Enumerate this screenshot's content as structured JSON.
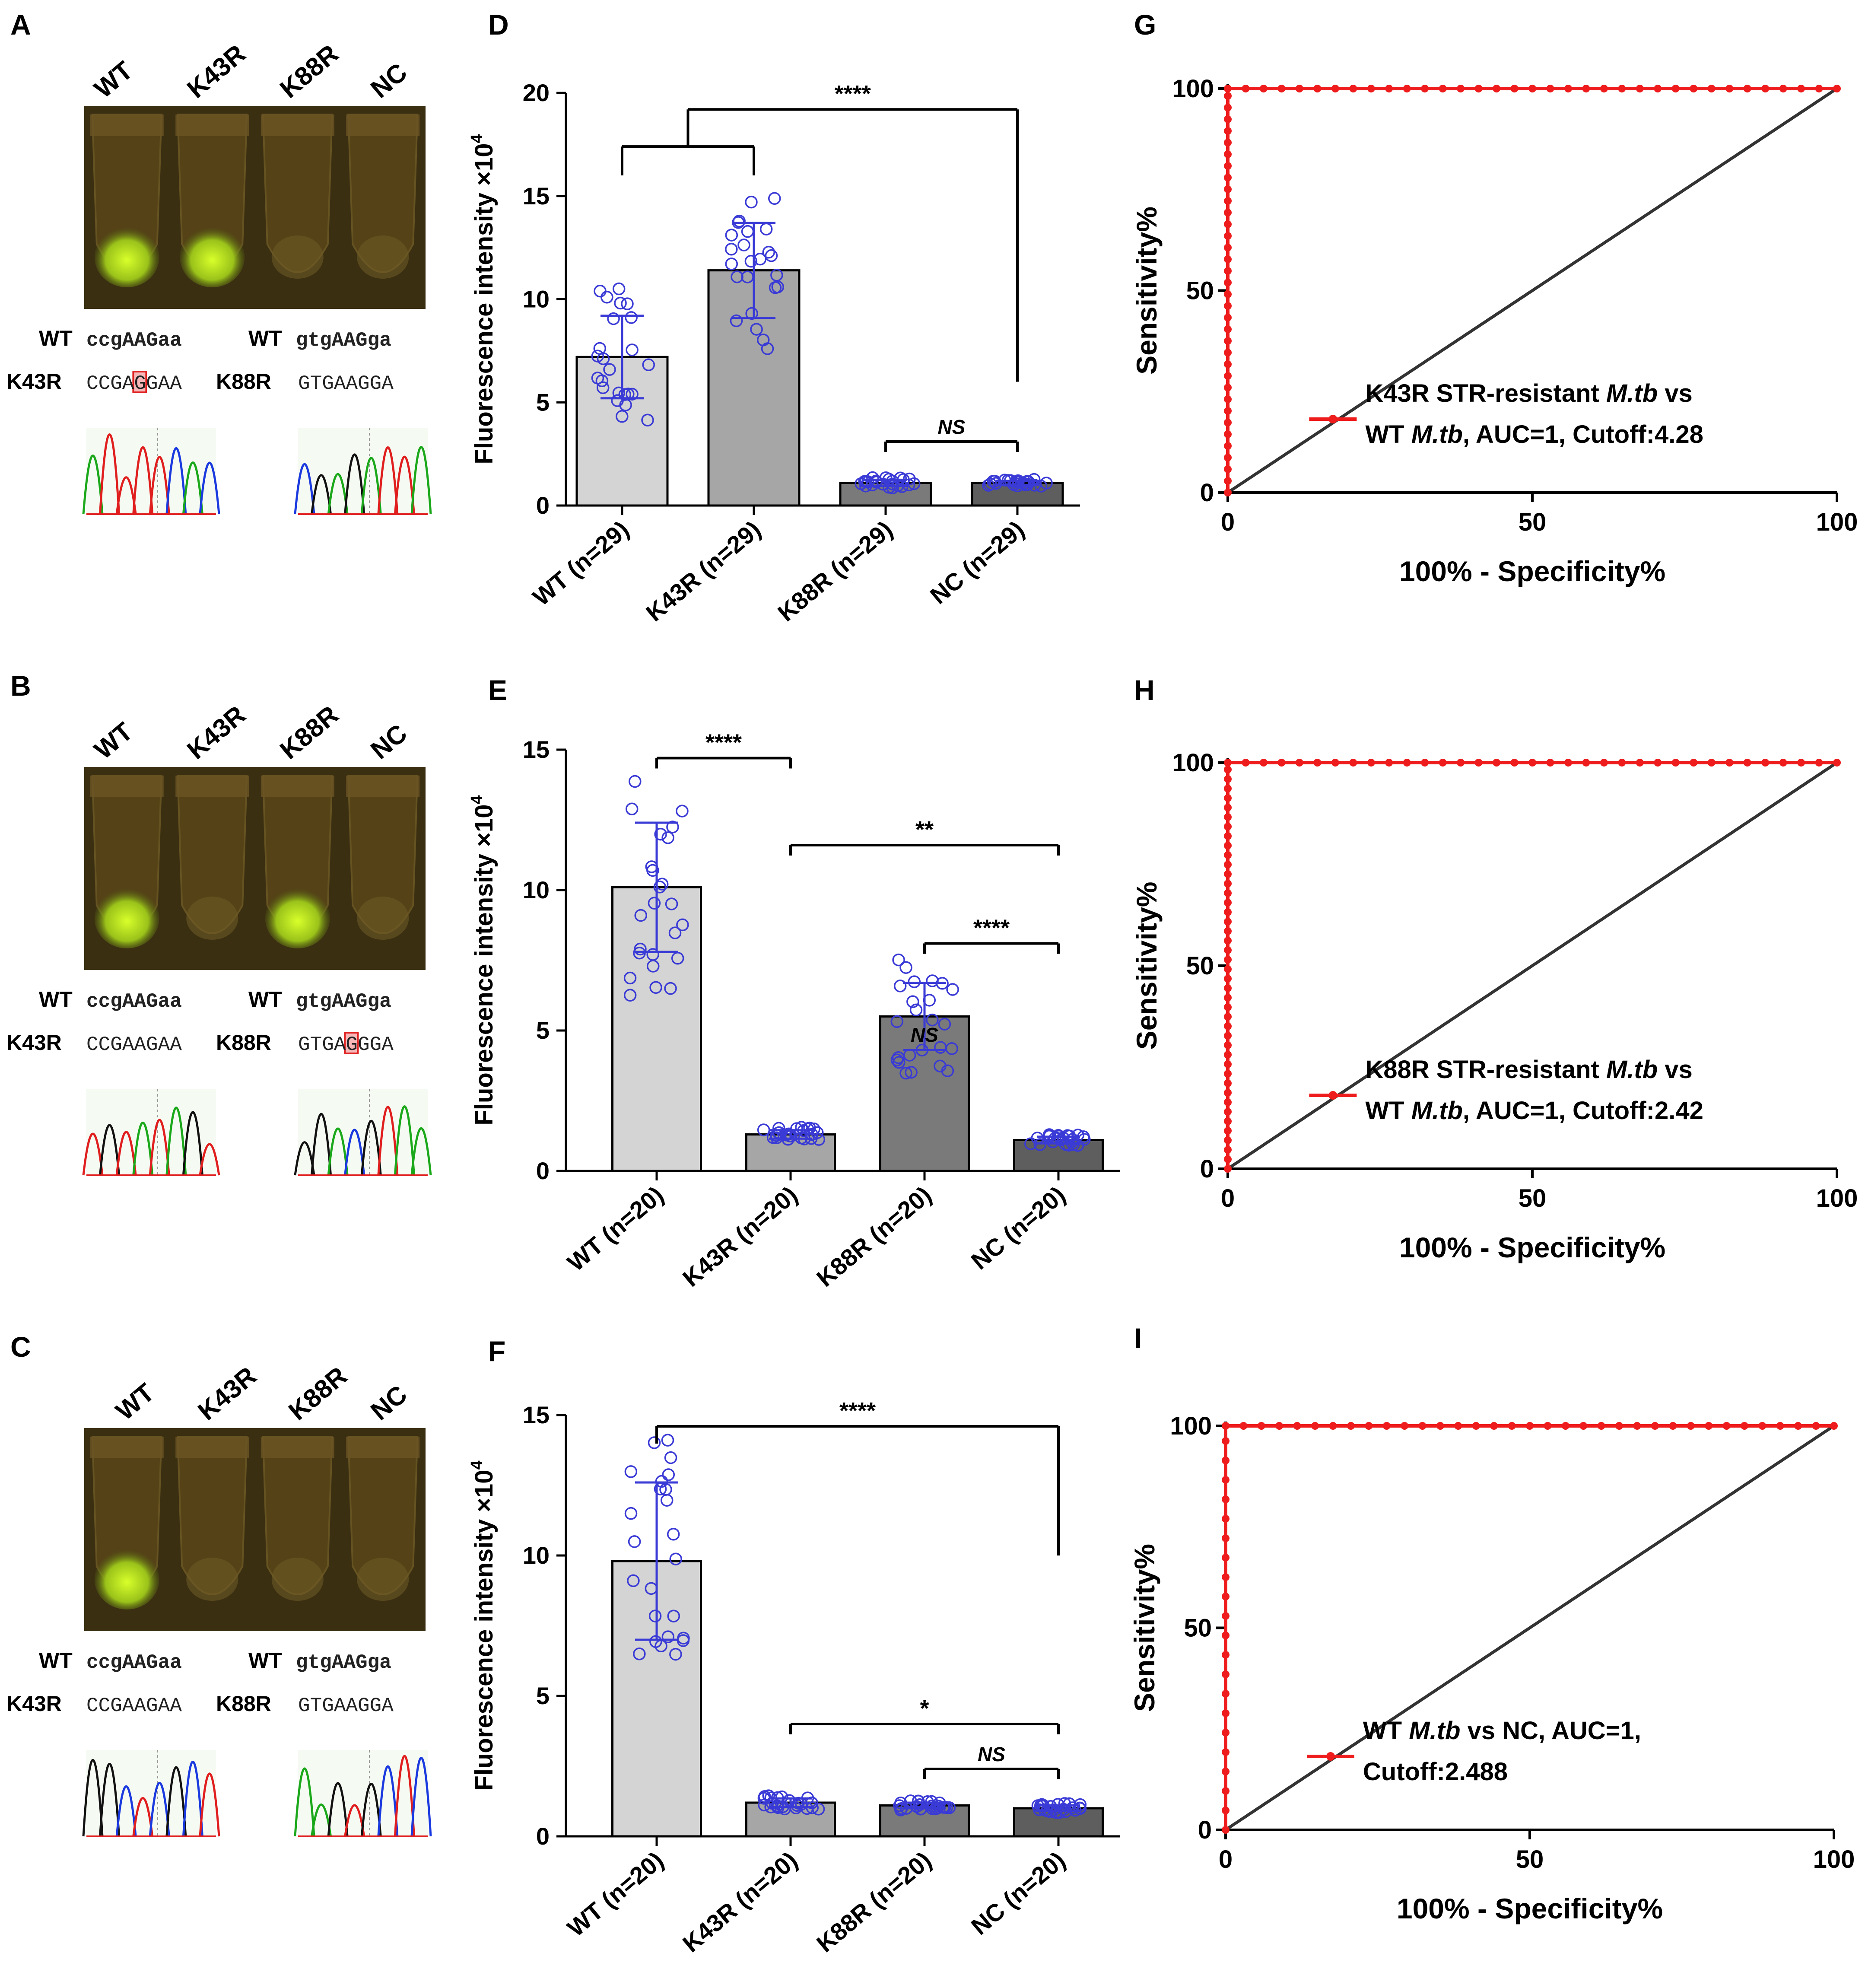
{
  "colors": {
    "bar_wt": "#d4d4d4",
    "bar_k43r": "#a6a6a6",
    "bar_k88r": "#7a7a7a",
    "bar_nc": "#5e5e5e",
    "dots": "#3a3ad6",
    "roc": "#ee1c1c",
    "diag": "#333333"
  },
  "gel_panels": [
    {
      "panel": "A",
      "lanes": [
        "WT",
        "K43R",
        "K88R",
        "NC"
      ],
      "glow_lanes": [
        0,
        1
      ],
      "seq_left": {
        "wt_label": "WT",
        "wt_seq": "ccgAAGaa",
        "mut_label": "K43R",
        "mut_seq": "CCGAGGAA",
        "highlight_index": 4
      },
      "seq_right": {
        "wt_label": "WT",
        "wt_seq": "gtgAAGga",
        "mut_label": "K88R",
        "mut_seq": "GTGAAGGA",
        "highlight_index": -1
      }
    },
    {
      "panel": "B",
      "lanes": [
        "WT",
        "K43R",
        "K88R",
        "NC"
      ],
      "glow_lanes": [
        0,
        2
      ],
      "seq_left": {
        "wt_label": "WT",
        "wt_seq": "ccgAAGaa",
        "mut_label": "K43R",
        "mut_seq": "CCGAAGAA",
        "highlight_index": -1
      },
      "seq_right": {
        "wt_label": "WT",
        "wt_seq": "gtgAAGga",
        "mut_label": "K88R",
        "mut_seq": "GTGAGGGA",
        "highlight_index": 4
      }
    },
    {
      "panel": "C",
      "lanes": [
        "WT",
        "K43R",
        "K88R",
        "NC"
      ],
      "glow_lanes": [
        0
      ],
      "seq_left": {
        "wt_label": "WT",
        "wt_seq": "ccgAAGaa",
        "mut_label": "K43R",
        "mut_seq": "CCGAAGAA",
        "highlight_index": -1
      },
      "seq_right": {
        "wt_label": "WT",
        "wt_seq": "gtgAAGga",
        "mut_label": "K88R",
        "mut_seq": "GTGAAGGA",
        "highlight_index": -1
      }
    }
  ],
  "chart_data": [
    {
      "panel": "D",
      "type": "bar",
      "ylabel": "Fluorescence intensity ×10",
      "ylabel_sup": "4",
      "ylim": [
        0,
        20
      ],
      "yticks": [
        0,
        5,
        10,
        15,
        20
      ],
      "categories": [
        "WT (n=29)",
        "K43R (n=29)",
        "K88R (n=29)",
        "NC (n=29)"
      ],
      "values": [
        7.2,
        11.4,
        1.1,
        1.1
      ],
      "sd": [
        2.0,
        2.3,
        0.15,
        0.1
      ],
      "comparisons": [
        {
          "from": 0.5,
          "to": 3,
          "label": "****",
          "kind": "group",
          "y": 19.2,
          "group_y": 17.4,
          "left_drop": 16.0,
          "right_drop": 6.0
        },
        {
          "from": 2,
          "to": 3,
          "label": "NS",
          "kind": "bracket",
          "y": 3.1
        }
      ]
    },
    {
      "panel": "E",
      "type": "bar",
      "ylabel": "Fluorescence intensity ×10",
      "ylabel_sup": "4",
      "ylim": [
        0,
        15
      ],
      "yticks": [
        0,
        5,
        10,
        15
      ],
      "categories": [
        "WT (n=20)",
        "K43R (n=20)",
        "K88R (n=20)",
        "NC (n=20)"
      ],
      "values": [
        10.1,
        1.3,
        5.5,
        1.1
      ],
      "sd": [
        2.3,
        0.15,
        1.2,
        0.12
      ],
      "comparisons": [
        {
          "from": 0,
          "to": 1,
          "label": "****",
          "kind": "bracket",
          "y": 14.7
        },
        {
          "from": 1,
          "to": 3,
          "label": "**",
          "kind": "bracket",
          "y": 11.6
        },
        {
          "from": 2,
          "to": 3,
          "label": "****",
          "kind": "bracket",
          "y": 8.1
        },
        {
          "from": 2,
          "to": 2,
          "label": "NS",
          "kind": "text",
          "y": 4.6
        }
      ]
    },
    {
      "panel": "F",
      "type": "bar",
      "ylabel": "Fluorescence intensity ×10",
      "ylabel_sup": "4",
      "ylim": [
        0,
        15
      ],
      "yticks": [
        0,
        5,
        10,
        15
      ],
      "categories": [
        "WT (n=20)",
        "K43R (n=20)",
        "K88R (n=20)",
        "NC (n=20)"
      ],
      "values": [
        9.8,
        1.2,
        1.1,
        1.0
      ],
      "sd": [
        2.8,
        0.15,
        0.1,
        0.1
      ],
      "comparisons": [
        {
          "from": 0,
          "to": 3,
          "label": "****",
          "kind": "tall",
          "y": 14.6,
          "right_drop": 10.0
        },
        {
          "from": 1,
          "to": 3,
          "label": "*",
          "kind": "bracket",
          "y": 4.0
        },
        {
          "from": 2,
          "to": 3,
          "label": "NS",
          "kind": "bracket",
          "y": 2.4
        }
      ]
    },
    {
      "panel": "G",
      "type": "line",
      "xlabel": "100% - Specificity%",
      "ylabel": "Sensitivity%",
      "xlim": [
        0,
        100
      ],
      "ylim": [
        0,
        100
      ],
      "xticks": [
        0,
        50,
        100
      ],
      "yticks": [
        0,
        50,
        100
      ],
      "series": [
        {
          "name": "K43R STR-resistant M.tb vs WT M.tb, AUC=1, Cutoff:4.28",
          "points": "roc-step"
        },
        {
          "name": "reference",
          "x": [
            0,
            100
          ],
          "y": [
            0,
            100
          ]
        }
      ],
      "legend": {
        "line1_pre": "K43R STR-resistant ",
        "line1_it": "M.tb",
        "line1_post": " vs",
        "line2_pre": "WT ",
        "line2_it": "M.tb",
        "line2_post": ", AUC=1, Cutoff:4.28"
      }
    },
    {
      "panel": "H",
      "type": "line",
      "xlabel": "100% - Specificity%",
      "ylabel": "Sensitivity%",
      "xlim": [
        0,
        100
      ],
      "ylim": [
        0,
        100
      ],
      "xticks": [
        0,
        50,
        100
      ],
      "yticks": [
        0,
        50,
        100
      ],
      "series": [
        {
          "name": "K88R STR-resistant M.tb vs WT M.tb, AUC=1, Cutoff:2.42",
          "points": "roc-step"
        },
        {
          "name": "reference",
          "x": [
            0,
            100
          ],
          "y": [
            0,
            100
          ]
        }
      ],
      "legend": {
        "line1_pre": "K88R STR-resistant ",
        "line1_it": "M.tb",
        "line1_post": " vs",
        "line2_pre": "WT ",
        "line2_it": "M.tb",
        "line2_post": ", AUC=1, Cutoff:2.42"
      }
    },
    {
      "panel": "I",
      "type": "line",
      "xlabel": "100% - Specificity%",
      "ylabel": "Sensitivity%",
      "xlim": [
        0,
        100
      ],
      "ylim": [
        0,
        100
      ],
      "xticks": [
        0,
        50,
        100
      ],
      "yticks": [
        0,
        50,
        100
      ],
      "series": [
        {
          "name": "WT M.tb vs NC, AUC=1, Cutoff:2.488",
          "points": "roc-step"
        },
        {
          "name": "reference",
          "x": [
            0,
            100
          ],
          "y": [
            0,
            100
          ]
        }
      ],
      "legend": {
        "line1_pre": "WT ",
        "line1_it": "M.tb",
        "line1_post": " vs NC, AUC=1,",
        "line2_pre": "Cutoff:2.488",
        "line2_it": "",
        "line2_post": ""
      }
    }
  ]
}
